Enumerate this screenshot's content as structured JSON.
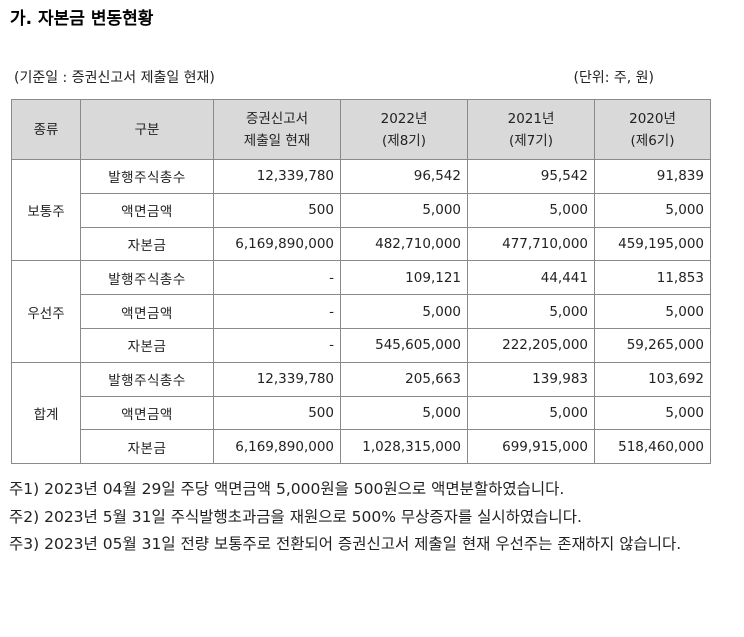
{
  "heading": "가. 자본금 변동현황",
  "meta": {
    "basis": "(기준일 : 증권신고서 제출일 현재)",
    "unit": "(단위: 주, 원)"
  },
  "table": {
    "headers": {
      "type": "종류",
      "division": "구분",
      "col1": [
        "증권신고서",
        "제출일 현재"
      ],
      "col2": [
        "2022년",
        "(제8기)"
      ],
      "col3": [
        "2021년",
        "(제7기)"
      ],
      "col4": [
        "2020년",
        "(제6기)"
      ]
    },
    "groups": [
      {
        "name": "보통주",
        "rows": [
          {
            "label": "발행주식총수",
            "values": [
              "12,339,780",
              "96,542",
              "95,542",
              "91,839"
            ]
          },
          {
            "label": "액면금액",
            "values": [
              "500",
              "5,000",
              "5,000",
              "5,000"
            ]
          },
          {
            "label": "자본금",
            "values": [
              "6,169,890,000",
              "482,710,000",
              "477,710,000",
              "459,195,000"
            ]
          }
        ]
      },
      {
        "name": "우선주",
        "rows": [
          {
            "label": "발행주식총수",
            "values": [
              "-",
              "109,121",
              "44,441",
              "11,853"
            ]
          },
          {
            "label": "액면금액",
            "values": [
              "-",
              "5,000",
              "5,000",
              "5,000"
            ]
          },
          {
            "label": "자본금",
            "values": [
              "-",
              "545,605,000",
              "222,205,000",
              "59,265,000"
            ]
          }
        ]
      },
      {
        "name": "합계",
        "rows": [
          {
            "label": "발행주식총수",
            "values": [
              "12,339,780",
              "205,663",
              "139,983",
              "103,692"
            ]
          },
          {
            "label": "액면금액",
            "values": [
              "500",
              "5,000",
              "5,000",
              "5,000"
            ]
          },
          {
            "label": "자본금",
            "values": [
              "6,169,890,000",
              "1,028,315,000",
              "699,915,000",
              "518,460,000"
            ]
          }
        ]
      }
    ]
  },
  "notes": [
    "주1) 2023년 04월 29일 주당 액면금액 5,000원을 500원으로 액면분할하였습니다.",
    "주2) 2023년 5월 31일 주식발행초과금을 재원으로 500% 무상증자를 실시하였습니다.",
    "주3) 2023년 05월 31일 전량 보통주로 전환되어 증권신고서 제출일 현재 우선주는 존재하지 않습니다."
  ]
}
